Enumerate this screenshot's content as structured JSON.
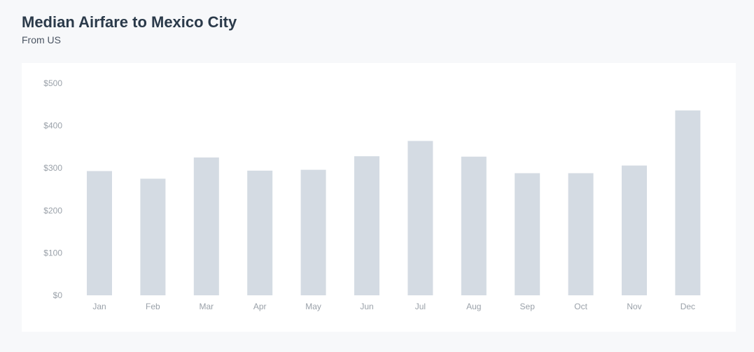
{
  "header": {
    "title": "Median Airfare to Mexico City",
    "subtitle": "From US"
  },
  "colors": {
    "bar": "#d4dbe3",
    "tick_label": "#9aa1a9",
    "title": "#2b3a4a",
    "background": "#f7f8fa",
    "card": "#ffffff"
  },
  "chart_data": {
    "type": "bar",
    "title": "Median Airfare to Mexico City",
    "subtitle": "From US",
    "categories": [
      "Jan",
      "Feb",
      "Mar",
      "Apr",
      "May",
      "Jun",
      "Jul",
      "Aug",
      "Sep",
      "Oct",
      "Nov",
      "Dec"
    ],
    "values": [
      293,
      275,
      325,
      294,
      296,
      328,
      364,
      327,
      288,
      288,
      306,
      436
    ],
    "ylim": [
      0,
      500
    ],
    "yticks": [
      0,
      100,
      200,
      300,
      400,
      500
    ],
    "ytick_labels": [
      "$0",
      "$100",
      "$200",
      "$300",
      "$400",
      "$500"
    ],
    "grid": false,
    "legend": "none"
  }
}
